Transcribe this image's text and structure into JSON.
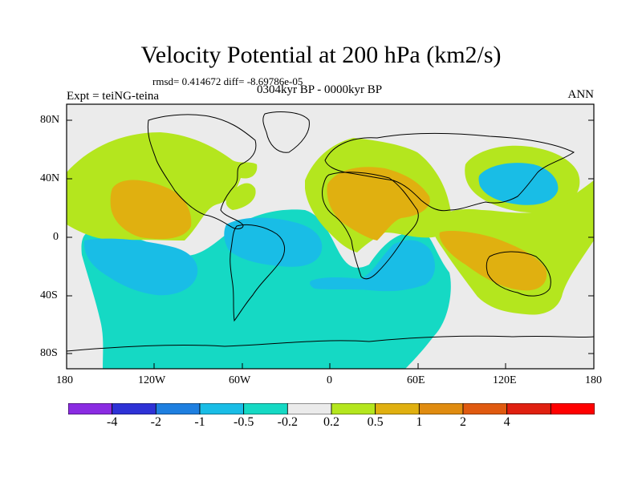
{
  "title": "Velocity Potential at 200 hPa (km2/s)",
  "stats": "rmsd= 0.414672  diff= -8.69786e-05",
  "expt": "Expt = teiNG-teina",
  "period": "0304kyr BP - 0000kyr BP",
  "season": "ANN",
  "lat_ticks": [
    "80N",
    "40N",
    "0",
    "40S",
    "80S"
  ],
  "lon_ticks": [
    "180",
    "120W",
    "60W",
    "0",
    "60E",
    "120E",
    "180"
  ],
  "colorbar": {
    "colors": [
      "#8a2be2",
      "#2e32d6",
      "#1e7fe0",
      "#19bde6",
      "#15d9c4",
      "#ebebeb",
      "#b4e61e",
      "#e0b010",
      "#e08c10",
      "#e05a10",
      "#e02010",
      "#ff0000"
    ],
    "labels": [
      "-4",
      "-2",
      "-1",
      "-0.5",
      "-0.2",
      "0.2",
      "0.5",
      "1",
      "2",
      "4"
    ]
  }
}
